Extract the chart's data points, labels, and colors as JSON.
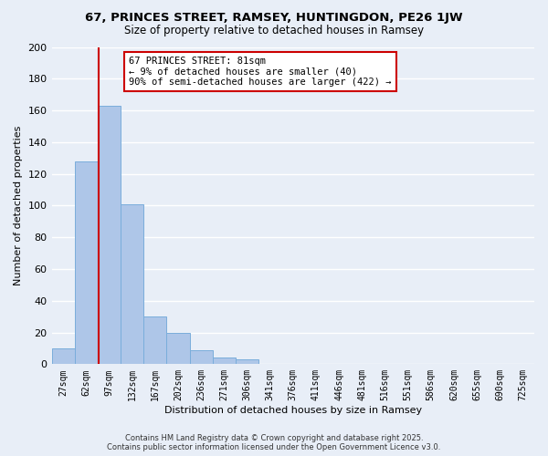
{
  "title": "67, PRINCES STREET, RAMSEY, HUNTINGDON, PE26 1JW",
  "subtitle": "Size of property relative to detached houses in Ramsey",
  "xlabel": "Distribution of detached houses by size in Ramsey",
  "ylabel": "Number of detached properties",
  "footer_line1": "Contains HM Land Registry data © Crown copyright and database right 2025.",
  "footer_line2": "Contains public sector information licensed under the Open Government Licence v3.0.",
  "bar_labels": [
    "27sqm",
    "62sqm",
    "97sqm",
    "132sqm",
    "167sqm",
    "202sqm",
    "236sqm",
    "271sqm",
    "306sqm",
    "341sqm",
    "376sqm",
    "411sqm",
    "446sqm",
    "481sqm",
    "516sqm",
    "551sqm",
    "586sqm",
    "620sqm",
    "655sqm",
    "690sqm",
    "725sqm"
  ],
  "bar_values": [
    10,
    128,
    163,
    101,
    30,
    20,
    9,
    4,
    3,
    0,
    0,
    0,
    0,
    0,
    0,
    0,
    0,
    0,
    0,
    0,
    0
  ],
  "bar_color": "#aec6e8",
  "bar_edge_color": "#7aaddb",
  "vline_x_index": 1.55,
  "vline_color": "#cc0000",
  "ylim": [
    0,
    200
  ],
  "yticks": [
    0,
    20,
    40,
    60,
    80,
    100,
    120,
    140,
    160,
    180,
    200
  ],
  "annotation_title": "67 PRINCES STREET: 81sqm",
  "annotation_line1": "← 9% of detached houses are smaller (40)",
  "annotation_line2": "90% of semi-detached houses are larger (422) →",
  "annotation_box_color": "#ffffff",
  "annotation_box_edge": "#cc0000",
  "bg_color": "#e8eef7",
  "grid_color": "#ffffff"
}
